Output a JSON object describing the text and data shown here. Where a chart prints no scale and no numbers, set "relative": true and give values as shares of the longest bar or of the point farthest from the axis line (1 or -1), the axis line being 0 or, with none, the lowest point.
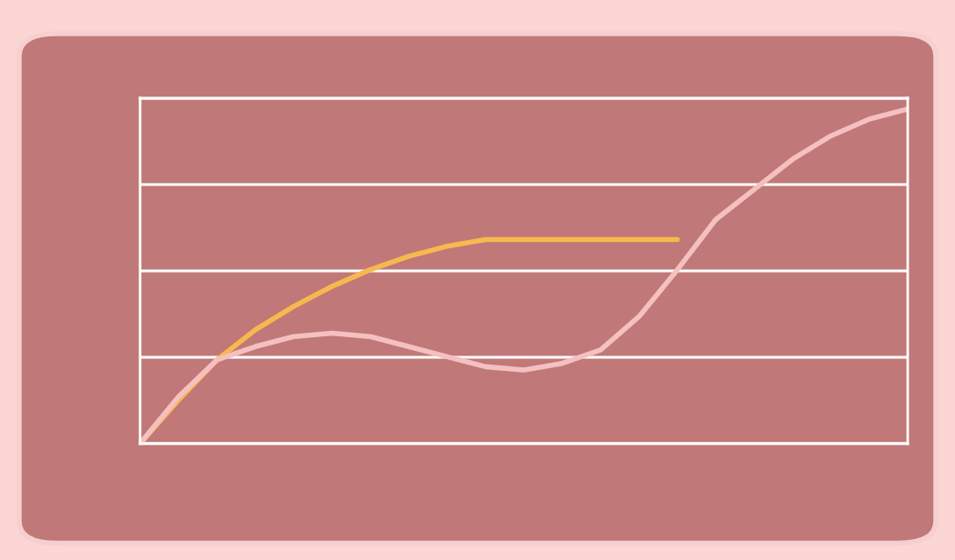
{
  "chart_data": {
    "type": "line",
    "relative": true,
    "grid": "y",
    "marker": "none",
    "line_style": "solid",
    "categories": [
      null,
      null,
      null,
      null,
      null,
      null,
      null,
      null,
      null,
      null,
      null,
      null,
      null,
      null,
      null,
      null,
      null,
      null,
      null,
      null,
      null
    ],
    "series": [
      {
        "color": "#f7b84f",
        "values": [
          0,
          0.13,
          0.25,
          0.34,
          0.41,
          0.47,
          0.52,
          0.56,
          0.59,
          0.61,
          0.61,
          0.61,
          0.61,
          0.61,
          0.61,
          null,
          null,
          null,
          null,
          null,
          null
        ]
      },
      {
        "color": "#f4c0c0",
        "values": [
          0,
          0.14,
          0.25,
          0.29,
          0.32,
          0.33,
          0.32,
          0.29,
          0.26,
          0.23,
          0.22,
          0.24,
          0.28,
          0.38,
          0.52,
          0.67,
          0.76,
          0.85,
          0.92,
          0.97,
          1.0
        ]
      }
    ]
  }
}
